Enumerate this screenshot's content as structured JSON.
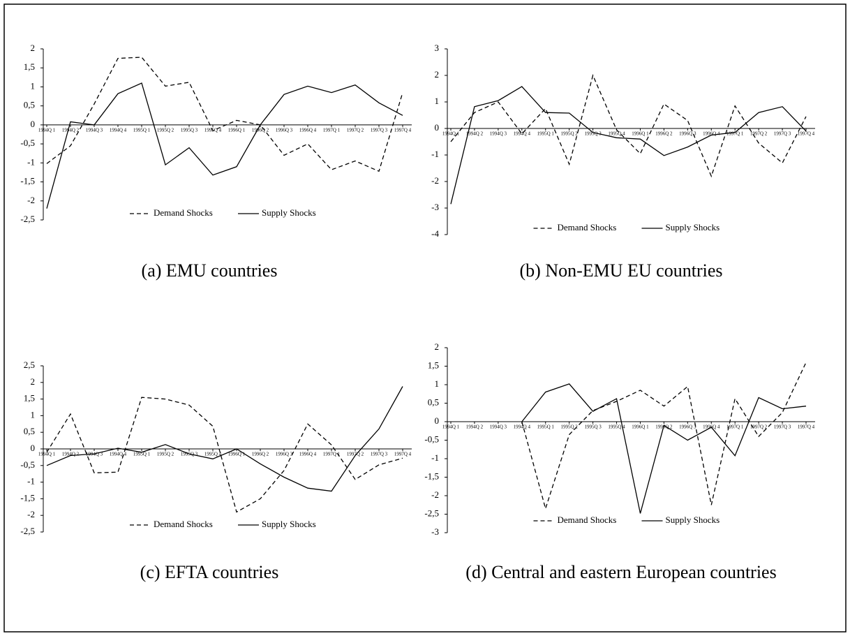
{
  "chart_data": [
    {
      "type": "line",
      "title": "(a) EMU countries",
      "categories": [
        "1994Q 1",
        "1994Q 2",
        "1994Q 3",
        "1994Q 4",
        "1995Q 1",
        "1995Q 2",
        "1995Q 3",
        "1995Q 4",
        "1996Q 1",
        "1996Q 2",
        "1996Q 3",
        "1996Q 4",
        "1997Q 1",
        "1997Q 2",
        "1997Q 3",
        "1997Q 4"
      ],
      "series": [
        {
          "name": "Demand Shocks",
          "color": "#000000",
          "dashed": true,
          "values": [
            -1.02,
            -0.55,
            0.55,
            1.75,
            1.78,
            1.02,
            1.12,
            -0.15,
            0.12,
            0.0,
            -0.8,
            -0.5,
            -1.18,
            -0.95,
            -1.22,
            0.85
          ]
        },
        {
          "name": "Supply Shocks",
          "color": "#000000",
          "dashed": false,
          "values": [
            -2.2,
            0.08,
            0.0,
            0.82,
            1.1,
            -1.05,
            -0.6,
            -1.32,
            -1.1,
            0.0,
            0.8,
            1.02,
            0.85,
            1.05,
            0.58,
            0.25
          ]
        }
      ],
      "ylim": [
        -2.5,
        2
      ],
      "yticks": [
        2,
        {
          "value": 1.5,
          "label": "1,5"
        },
        1,
        {
          "value": 0.5,
          "label": "0,5"
        },
        0,
        {
          "value": -0.5,
          "label": "-0,5"
        },
        -1,
        {
          "value": -1.5,
          "label": "-1,5"
        },
        -2,
        {
          "value": -2.5,
          "label": "-2,5"
        }
      ],
      "legend": "bottom"
    },
    {
      "type": "line",
      "title": "(b) Non-EMU EU countries",
      "categories": [
        "1994Q 1",
        "1994Q 2",
        "1994Q 3",
        "1994Q 4",
        "1995Q 1",
        "1995Q 2",
        "1995Q 3",
        "1995Q 4",
        "1996Q 1",
        "1996Q 2",
        "1996Q 3",
        "1996Q 4",
        "1997Q 1",
        "1997Q 2",
        "1997Q 3",
        "1997Q 4"
      ],
      "series": [
        {
          "name": "Demand Shocks",
          "color": "#000000",
          "dashed": true,
          "values": [
            -0.5,
            0.6,
            1.0,
            -0.2,
            0.75,
            -1.35,
            2.0,
            -0.05,
            -0.95,
            0.92,
            0.3,
            -1.8,
            0.85,
            -0.55,
            -1.3,
            0.45
          ]
        },
        {
          "name": "Supply Shocks",
          "color": "#000000",
          "dashed": false,
          "values": [
            -2.85,
            0.82,
            1.05,
            1.58,
            0.6,
            0.58,
            -0.15,
            -0.35,
            -0.4,
            -1.02,
            -0.7,
            -0.25,
            -0.15,
            0.6,
            0.82,
            -0.1
          ]
        }
      ],
      "ylim": [
        -4,
        3
      ],
      "yticks": [
        3,
        2,
        1,
        0,
        -1,
        -2,
        -3,
        -4
      ],
      "legend": "bottom"
    },
    {
      "type": "line",
      "title": "(c) EFTA countries",
      "categories": [
        "1994Q 1",
        "1994Q 2",
        "1994Q 3",
        "1994Q 4",
        "1995Q 1",
        "1995Q 2",
        "1995Q 3",
        "1995Q 4",
        "1996Q 1",
        "1996Q 2",
        "1996Q 3",
        "1996Q 4",
        "1997Q 1",
        "1997Q 2",
        "1997Q 3",
        "1997Q 4"
      ],
      "series": [
        {
          "name": "Demand Shocks",
          "color": "#000000",
          "dashed": true,
          "values": [
            -0.1,
            1.05,
            -0.72,
            -0.7,
            1.55,
            1.5,
            1.32,
            0.68,
            -1.9,
            -1.5,
            -0.65,
            0.75,
            0.12,
            -0.92,
            -0.48,
            -0.28
          ]
        },
        {
          "name": "Supply Shocks",
          "color": "#000000",
          "dashed": false,
          "values": [
            -0.5,
            -0.2,
            -0.15,
            0.02,
            -0.1,
            0.13,
            -0.15,
            -0.3,
            0.0,
            -0.45,
            -0.85,
            -1.18,
            -1.27,
            -0.2,
            0.6,
            1.88
          ]
        }
      ],
      "ylim": [
        -2.5,
        2.5
      ],
      "yticks": [
        {
          "value": 2.5,
          "label": "2,5"
        },
        2,
        {
          "value": 1.5,
          "label": "1,5"
        },
        1,
        {
          "value": 0.5,
          "label": "0,5"
        },
        0,
        {
          "value": -0.5,
          "label": "-0,5"
        },
        -1,
        {
          "value": -1.5,
          "label": "-1,5"
        },
        -2,
        {
          "value": -2.5,
          "label": "-2,5"
        }
      ],
      "legend": "bottom"
    },
    {
      "type": "line",
      "title": "(d) Central and eastern European countries",
      "categories": [
        "1994Q 1",
        "1994Q 2",
        "1994Q 3",
        "1994Q 4",
        "1995Q 1",
        "1995Q 2",
        "1995Q 3",
        "1995Q 4",
        "1996Q 1",
        "1996Q 2",
        "1996Q 3",
        "1996Q 4",
        "1997Q 1",
        "1997Q 2",
        "1997Q 3",
        "1997Q 4"
      ],
      "series": [
        {
          "name": "Demand Shocks",
          "color": "#000000",
          "dashed": true,
          "values": [
            null,
            null,
            null,
            0.0,
            -2.35,
            -0.35,
            0.3,
            0.55,
            0.85,
            0.42,
            0.95,
            -2.25,
            0.62,
            -0.4,
            0.25,
            1.6
          ]
        },
        {
          "name": "Supply Shocks",
          "color": "#000000",
          "dashed": false,
          "values": [
            null,
            null,
            null,
            0.0,
            0.8,
            1.02,
            0.28,
            0.62,
            -2.48,
            -0.1,
            -0.5,
            -0.15,
            -0.92,
            0.65,
            0.35,
            0.42
          ]
        }
      ],
      "ylim": [
        -3,
        2
      ],
      "yticks": [
        2,
        {
          "value": 1.5,
          "label": "1,5"
        },
        1,
        {
          "value": 0.5,
          "label": "0,5"
        },
        0,
        {
          "value": -0.5,
          "label": "-0,5"
        },
        -1,
        {
          "value": -1.5,
          "label": "-1,5"
        },
        -2,
        {
          "value": -2.5,
          "label": "-2,5"
        },
        -3
      ],
      "legend": "bottom"
    }
  ]
}
